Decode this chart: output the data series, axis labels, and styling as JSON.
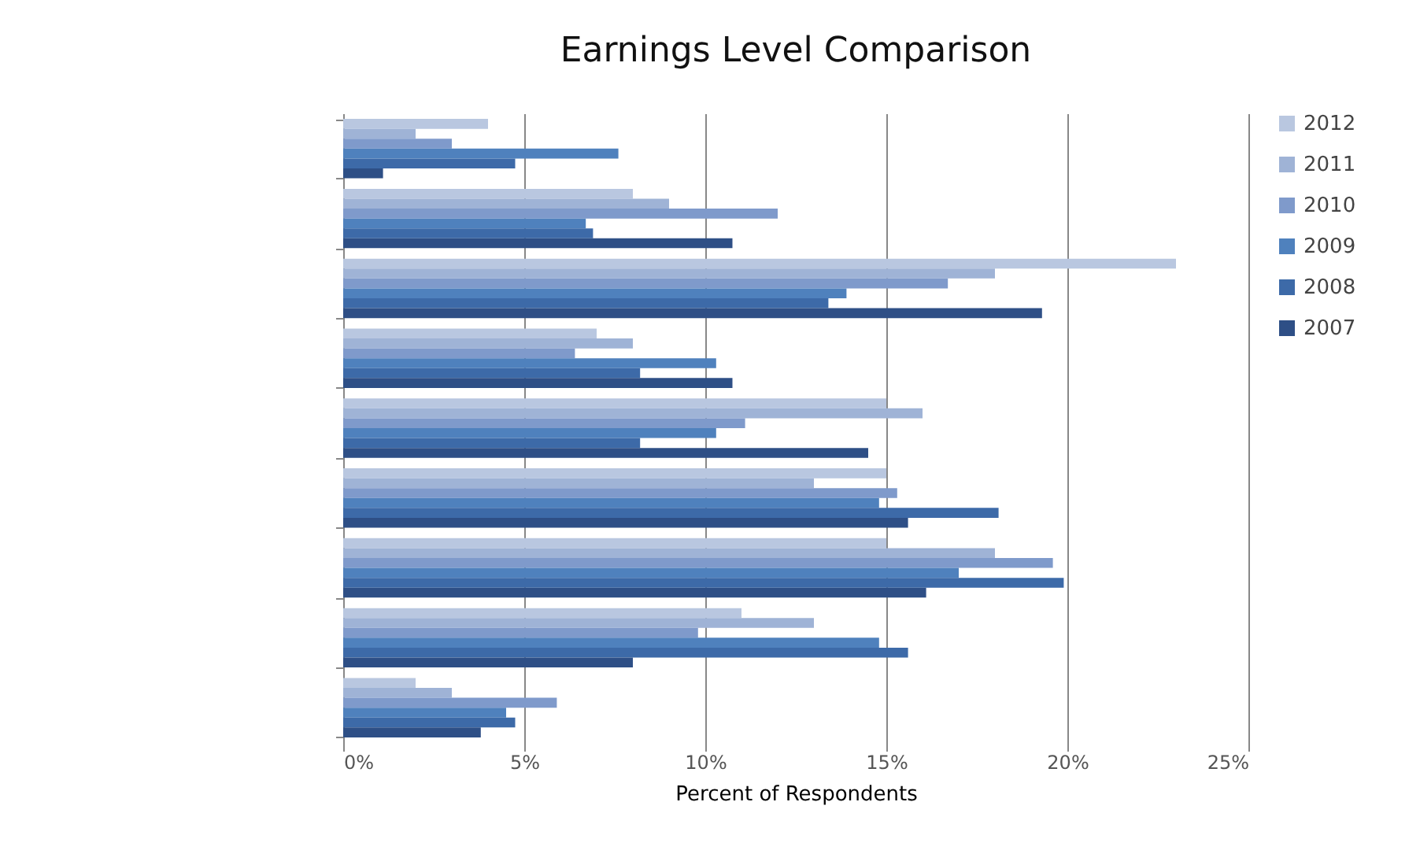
{
  "chart_data": {
    "type": "bar",
    "orientation": "horizontal",
    "title": "Earnings Level Comparison",
    "xlabel": "Percent of Respondents",
    "categories": [
      null,
      null,
      null,
      null,
      null,
      null,
      null,
      null,
      null
    ],
    "series": [
      {
        "name": "2012",
        "color": "#b9c7e0",
        "values": [
          4.0,
          8.0,
          23.0,
          7.0,
          15.0,
          15.0,
          15.0,
          11.0,
          2.0
        ]
      },
      {
        "name": "2011",
        "color": "#9fb3d6",
        "values": [
          2.0,
          9.0,
          18.0,
          8.0,
          16.0,
          13.0,
          18.0,
          13.0,
          3.0
        ]
      },
      {
        "name": "2010",
        "color": "#7f9acb",
        "values": [
          3.0,
          12.0,
          16.7,
          6.4,
          11.1,
          15.3,
          19.6,
          9.8,
          5.9
        ]
      },
      {
        "name": "2009",
        "color": "#4f81bd",
        "values": [
          7.6,
          6.7,
          13.9,
          10.3,
          10.3,
          14.8,
          17.0,
          14.8,
          4.5
        ]
      },
      {
        "name": "2008",
        "color": "#3d6aa8",
        "values": [
          4.75,
          6.9,
          13.4,
          8.2,
          8.2,
          18.1,
          19.9,
          15.6,
          4.75
        ]
      },
      {
        "name": "2007",
        "color": "#2e4f86",
        "values": [
          1.1,
          10.75,
          19.3,
          10.75,
          14.5,
          15.6,
          16.1,
          8.0,
          3.8
        ]
      }
    ],
    "xlim": [
      0,
      25
    ],
    "xticks": [
      {
        "value": 0,
        "label": "0%"
      },
      {
        "value": 5,
        "label": "5%"
      },
      {
        "value": 10,
        "label": "10%"
      },
      {
        "value": 15,
        "label": "15%"
      },
      {
        "value": 20,
        "label": "20%"
      },
      {
        "value": 25,
        "label": "25%"
      }
    ],
    "grid": "x",
    "legend": "right",
    "tick_labels": "x"
  }
}
